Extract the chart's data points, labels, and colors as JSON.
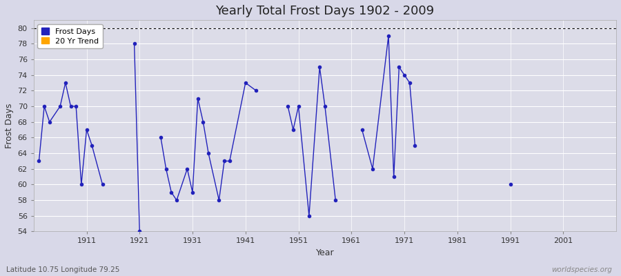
{
  "title": "Yearly Total Frost Days 1902 - 2009",
  "xlabel": "Year",
  "ylabel": "Frost Days",
  "xlim": [
    1901,
    2011
  ],
  "ylim": [
    54,
    81
  ],
  "yticks": [
    54,
    56,
    58,
    60,
    62,
    64,
    66,
    68,
    70,
    72,
    74,
    76,
    78,
    80
  ],
  "xticks": [
    1911,
    1921,
    1931,
    1941,
    1951,
    1961,
    1971,
    1981,
    1991,
    2001
  ],
  "hline_y": 80,
  "background_color": "#d8d8e8",
  "plot_bg_color": "#dcdce8",
  "line_color": "#2222bb",
  "line_width": 1.0,
  "marker_size": 3,
  "legend_entries": [
    "Frost Days",
    "20 Yr Trend"
  ],
  "legend_colors": [
    "#2222bb",
    "#ffa500"
  ],
  "frost_days": [
    [
      1902,
      63
    ],
    [
      1903,
      70
    ],
    [
      1904,
      68
    ],
    [
      1906,
      70
    ],
    [
      1907,
      73
    ],
    [
      1908,
      70
    ],
    [
      1909,
      70
    ],
    [
      1910,
      60
    ],
    [
      1911,
      67
    ],
    [
      1912,
      65
    ],
    [
      1914,
      60
    ],
    [
      1920,
      78
    ],
    [
      1921,
      54
    ],
    [
      1925,
      66
    ],
    [
      1926,
      62
    ],
    [
      1927,
      59
    ],
    [
      1928,
      58
    ],
    [
      1930,
      62
    ],
    [
      1931,
      59
    ],
    [
      1932,
      71
    ],
    [
      1933,
      68
    ],
    [
      1934,
      64
    ],
    [
      1936,
      58
    ],
    [
      1937,
      63
    ],
    [
      1938,
      63
    ],
    [
      1941,
      73
    ],
    [
      1943,
      72
    ],
    [
      1949,
      70
    ],
    [
      1950,
      67
    ],
    [
      1951,
      70
    ],
    [
      1953,
      56
    ],
    [
      1955,
      75
    ],
    [
      1956,
      70
    ],
    [
      1958,
      58
    ],
    [
      1963,
      67
    ],
    [
      1965,
      62
    ],
    [
      1968,
      79
    ],
    [
      1969,
      61
    ],
    [
      1970,
      75
    ],
    [
      1971,
      74
    ],
    [
      1972,
      73
    ],
    [
      1973,
      65
    ],
    [
      1991,
      60
    ]
  ],
  "watermark": "worldspecies.org",
  "corner_text": "Latitude 10.75 Longitude 79.25",
  "title_fontsize": 13,
  "axis_label_fontsize": 9,
  "tick_fontsize": 8,
  "legend_fontsize": 8
}
